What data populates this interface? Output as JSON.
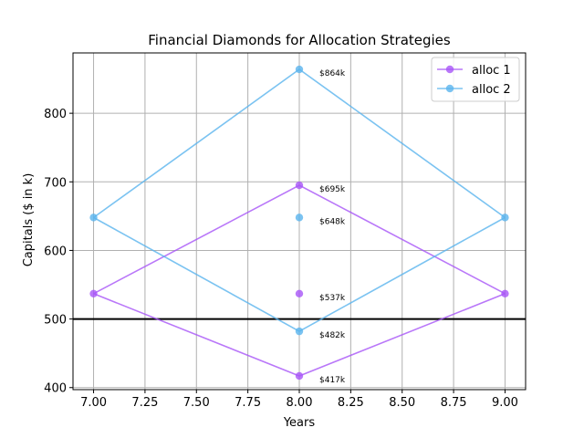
{
  "chart_data": {
    "type": "line",
    "title": "Financial Diamonds for Allocation Strategies",
    "xlabel": "Years",
    "ylabel": "Capitals ($ in k)",
    "xlim": [
      6.9,
      9.1
    ],
    "ylim": [
      397,
      888
    ],
    "xticks": [
      7.0,
      7.25,
      7.5,
      7.75,
      8.0,
      8.25,
      8.5,
      8.75,
      9.0
    ],
    "xtick_labels": [
      "7.00",
      "7.25",
      "7.50",
      "7.75",
      "8.00",
      "8.25",
      "8.50",
      "8.75",
      "9.00"
    ],
    "yticks": [
      400,
      500,
      600,
      700,
      800
    ],
    "ytick_labels": [
      "400",
      "500",
      "600",
      "700",
      "800"
    ],
    "grid": true,
    "legend_position": "top-right",
    "hline": 500,
    "series": [
      {
        "name": "alloc 1",
        "color": "#a855f7",
        "lines": [
          {
            "x": [
              7,
              8,
              9
            ],
            "y": [
              537,
              695,
              537
            ]
          },
          {
            "x": [
              7,
              8,
              9
            ],
            "y": [
              537,
              417,
              537
            ]
          }
        ],
        "points": [
          {
            "x": 7,
            "y": 537
          },
          {
            "x": 8,
            "y": 695
          },
          {
            "x": 9,
            "y": 537
          },
          {
            "x": 8,
            "y": 417
          },
          {
            "x": 8,
            "y": 537
          }
        ]
      },
      {
        "name": "alloc 2",
        "color": "#5ab4ee",
        "lines": [
          {
            "x": [
              7,
              8,
              9
            ],
            "y": [
              648,
              864,
              648
            ]
          },
          {
            "x": [
              7,
              8,
              9
            ],
            "y": [
              648,
              482,
              648
            ]
          }
        ],
        "points": [
          {
            "x": 7,
            "y": 648
          },
          {
            "x": 8,
            "y": 864
          },
          {
            "x": 9,
            "y": 648
          },
          {
            "x": 8,
            "y": 482
          },
          {
            "x": 8,
            "y": 648
          }
        ]
      }
    ],
    "annotations": [
      {
        "x": 8,
        "y": 864,
        "text": "$864k"
      },
      {
        "x": 8,
        "y": 695,
        "text": "$695k"
      },
      {
        "x": 8,
        "y": 648,
        "text": "$648k"
      },
      {
        "x": 8,
        "y": 537,
        "text": "$537k"
      },
      {
        "x": 8,
        "y": 482,
        "text": "$482k"
      },
      {
        "x": 8,
        "y": 417,
        "text": "$417k"
      }
    ]
  }
}
